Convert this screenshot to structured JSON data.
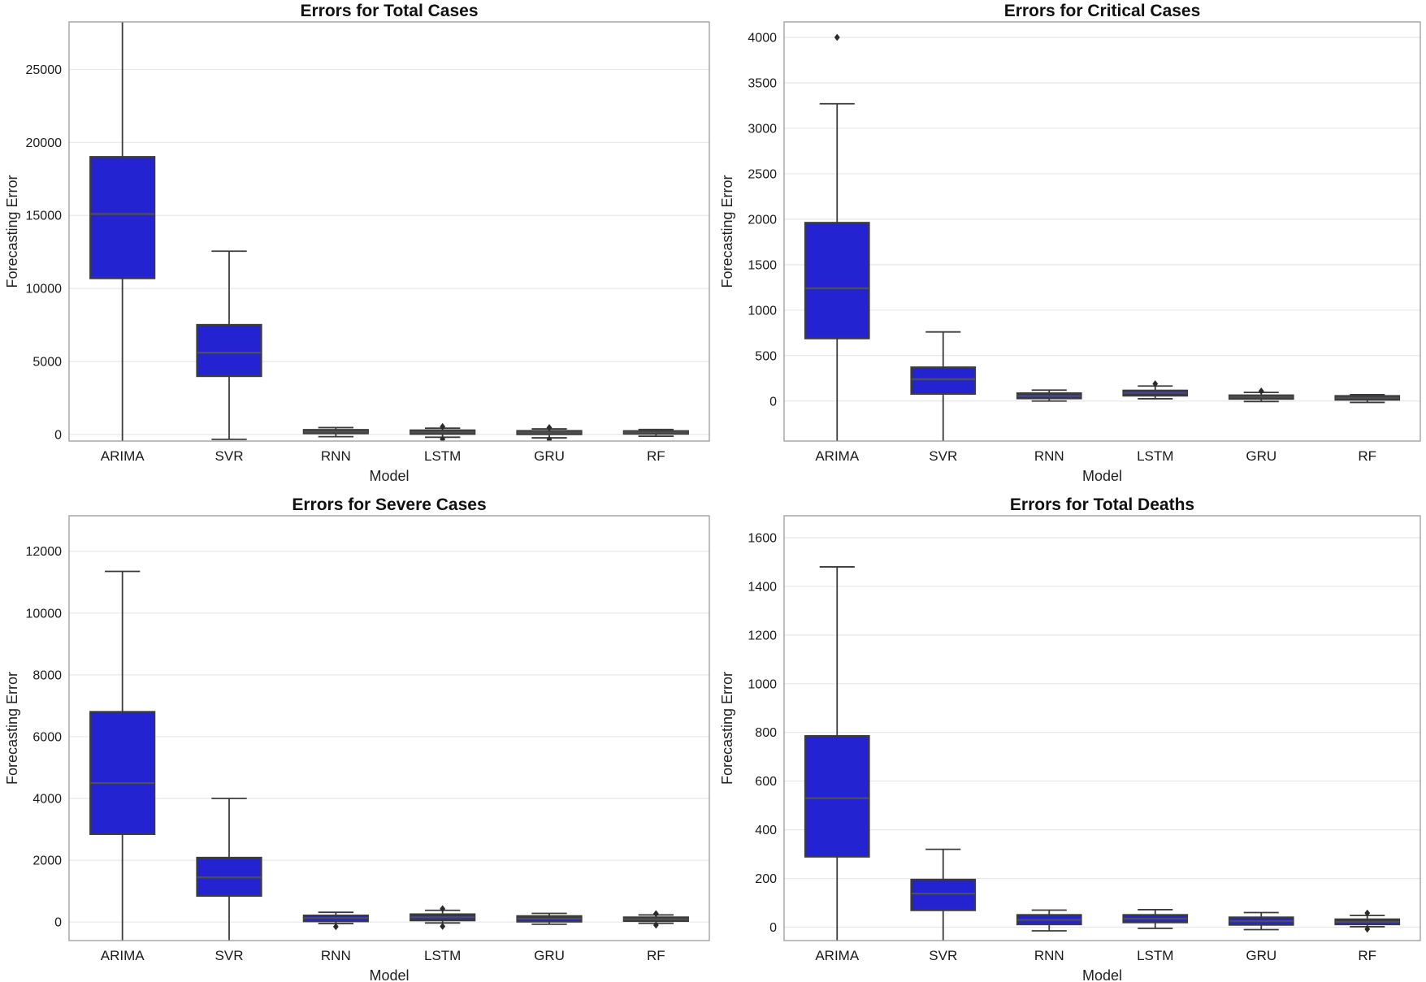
{
  "figure": {
    "rows": 2,
    "cols": 2
  },
  "colors": {
    "box_fill": "#2323d1",
    "box_edge": "#3b3b3b",
    "median_line": "#4f4f4f",
    "whisker": "#3b3b3b",
    "outlier": "#2b2b2b",
    "grid_line": "#e7e7ea",
    "spine": "#9a9a9a",
    "background": "#ffffff",
    "text": "#1a1a1a"
  },
  "chart_data": [
    {
      "type": "box",
      "title": "Errors for Total Cases",
      "xlabel": "Model",
      "ylabel": "Forecasting Error",
      "categories": [
        "ARIMA",
        "SVR",
        "RNN",
        "LSTM",
        "GRU",
        "RF"
      ],
      "yticks": [
        0,
        5000,
        10000,
        15000,
        20000,
        25000
      ],
      "ylim": [
        -450,
        28250
      ],
      "grid": true,
      "legend": null,
      "boxes": [
        {
          "model": "ARIMA",
          "whislo": -1500,
          "q1": 10700,
          "med": 15100,
          "q3": 19000,
          "whishi": 30000,
          "fliers": []
        },
        {
          "model": "SVR",
          "whislo": -330,
          "q1": 4000,
          "med": 5600,
          "q3": 7500,
          "whishi": 12550,
          "fliers": []
        },
        {
          "model": "RNN",
          "whislo": -150,
          "q1": 80,
          "med": 190,
          "q3": 310,
          "whishi": 470,
          "fliers": []
        },
        {
          "model": "LSTM",
          "whislo": -190,
          "q1": 40,
          "med": 160,
          "q3": 280,
          "whishi": 430,
          "fliers": [
            540,
            -320
          ]
        },
        {
          "model": "GRU",
          "whislo": -230,
          "q1": 20,
          "med": 130,
          "q3": 240,
          "whishi": 380,
          "fliers": [
            470,
            -350
          ]
        },
        {
          "model": "RF",
          "whislo": -120,
          "q1": 50,
          "med": 140,
          "q3": 230,
          "whishi": 340,
          "fliers": []
        }
      ]
    },
    {
      "type": "box",
      "title": "Errors for Critical Cases",
      "xlabel": "Model",
      "ylabel": "Forecasting Error",
      "categories": [
        "ARIMA",
        "SVR",
        "RNN",
        "LSTM",
        "GRU",
        "RF"
      ],
      "yticks": [
        0,
        500,
        1000,
        1500,
        2000,
        2500,
        3000,
        3500,
        4000
      ],
      "ylim": [
        -440,
        4170
      ],
      "grid": true,
      "legend": null,
      "boxes": [
        {
          "model": "ARIMA",
          "whislo": -600,
          "q1": 690,
          "med": 1240,
          "q3": 1960,
          "whishi": 3270,
          "fliers": [
            4000
          ]
        },
        {
          "model": "SVR",
          "whislo": -500,
          "q1": 80,
          "med": 240,
          "q3": 370,
          "whishi": 760,
          "fliers": []
        },
        {
          "model": "RNN",
          "whislo": 0,
          "q1": 30,
          "med": 55,
          "q3": 85,
          "whishi": 120,
          "fliers": []
        },
        {
          "model": "LSTM",
          "whislo": 25,
          "q1": 60,
          "med": 90,
          "q3": 115,
          "whishi": 165,
          "fliers": [
            190
          ]
        },
        {
          "model": "GRU",
          "whislo": -5,
          "q1": 25,
          "med": 45,
          "q3": 62,
          "whishi": 95,
          "fliers": [
            110
          ]
        },
        {
          "model": "RF",
          "whislo": -15,
          "q1": 15,
          "med": 35,
          "q3": 55,
          "whishi": 70,
          "fliers": []
        }
      ]
    },
    {
      "type": "box",
      "title": "Errors for Severe Cases",
      "xlabel": "Model",
      "ylabel": "Forecasting Error",
      "categories": [
        "ARIMA",
        "SVR",
        "RNN",
        "LSTM",
        "GRU",
        "RF"
      ],
      "yticks": [
        0,
        2000,
        4000,
        6000,
        8000,
        10000,
        12000
      ],
      "ylim": [
        -600,
        13150
      ],
      "grid": true,
      "legend": null,
      "boxes": [
        {
          "model": "ARIMA",
          "whislo": -1200,
          "q1": 2850,
          "med": 4500,
          "q3": 6800,
          "whishi": 11350,
          "fliers": []
        },
        {
          "model": "SVR",
          "whislo": -900,
          "q1": 850,
          "med": 1450,
          "q3": 2080,
          "whishi": 4000,
          "fliers": []
        },
        {
          "model": "RNN",
          "whislo": -50,
          "q1": 25,
          "med": 130,
          "q3": 210,
          "whishi": 315,
          "fliers": [
            -150
          ]
        },
        {
          "model": "LSTM",
          "whislo": -30,
          "q1": 55,
          "med": 155,
          "q3": 250,
          "whishi": 380,
          "fliers": [
            430,
            -140
          ]
        },
        {
          "model": "GRU",
          "whislo": -70,
          "q1": 15,
          "med": 110,
          "q3": 190,
          "whishi": 280,
          "fliers": []
        },
        {
          "model": "RF",
          "whislo": -40,
          "q1": 35,
          "med": 90,
          "q3": 150,
          "whishi": 230,
          "fliers": [
            270,
            -100
          ]
        }
      ]
    },
    {
      "type": "box",
      "title": "Errors for Total Deaths",
      "xlabel": "Model",
      "ylabel": "Forecasting Error",
      "categories": [
        "ARIMA",
        "SVR",
        "RNN",
        "LSTM",
        "GRU",
        "RF"
      ],
      "yticks": [
        0,
        200,
        400,
        600,
        800,
        1000,
        1200,
        1400,
        1600
      ],
      "ylim": [
        -55,
        1690
      ],
      "grid": true,
      "legend": null,
      "boxes": [
        {
          "model": "ARIMA",
          "whislo": -150,
          "q1": 290,
          "med": 530,
          "q3": 785,
          "whishi": 1480,
          "fliers": []
        },
        {
          "model": "SVR",
          "whislo": -100,
          "q1": 70,
          "med": 138,
          "q3": 195,
          "whishi": 320,
          "fliers": []
        },
        {
          "model": "RNN",
          "whislo": -15,
          "q1": 12,
          "med": 30,
          "q3": 50,
          "whishi": 70,
          "fliers": []
        },
        {
          "model": "LSTM",
          "whislo": -5,
          "q1": 20,
          "med": 35,
          "q3": 50,
          "whishi": 72,
          "fliers": []
        },
        {
          "model": "GRU",
          "whislo": -10,
          "q1": 10,
          "med": 25,
          "q3": 40,
          "whishi": 60,
          "fliers": []
        },
        {
          "model": "RF",
          "whislo": 2,
          "q1": 12,
          "med": 22,
          "q3": 32,
          "whishi": 48,
          "fliers": [
            58,
            -8
          ]
        }
      ]
    }
  ]
}
